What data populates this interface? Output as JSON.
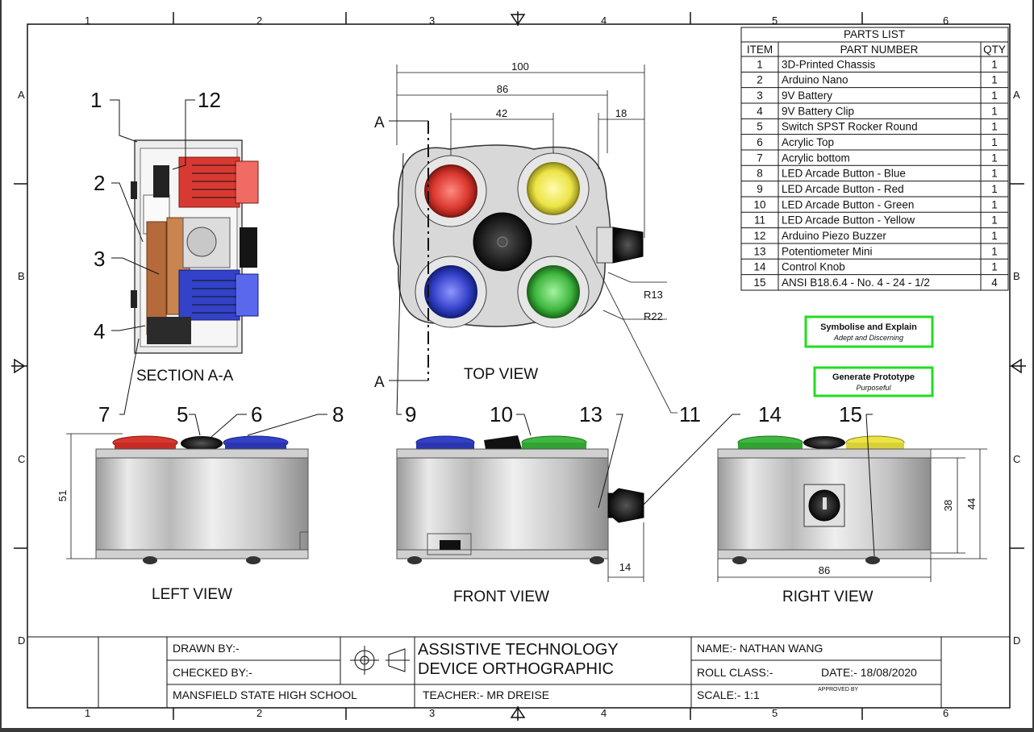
{
  "sheet": {
    "columns": [
      "1",
      "2",
      "3",
      "4",
      "5",
      "6"
    ],
    "rows": [
      "A",
      "B",
      "C",
      "D"
    ]
  },
  "parts_list": {
    "title": "PARTS LIST",
    "headers": [
      "ITEM",
      "PART NUMBER",
      "QTY"
    ],
    "rows": [
      {
        "item": "1",
        "part": "3D-Printed Chassis",
        "qty": "1"
      },
      {
        "item": "2",
        "part": "Arduino Nano",
        "qty": "1"
      },
      {
        "item": "3",
        "part": "9V Battery",
        "qty": "1"
      },
      {
        "item": "4",
        "part": "9V Battery Clip",
        "qty": "1"
      },
      {
        "item": "5",
        "part": "Switch SPST Rocker Round",
        "qty": "1"
      },
      {
        "item": "6",
        "part": "Acrylic Top",
        "qty": "1"
      },
      {
        "item": "7",
        "part": "Acrylic bottom",
        "qty": "1"
      },
      {
        "item": "8",
        "part": "LED Arcade Button - Blue",
        "qty": "1"
      },
      {
        "item": "9",
        "part": "LED Arcade Button - Red",
        "qty": "1"
      },
      {
        "item": "10",
        "part": "LED Arcade Button - Green",
        "qty": "1"
      },
      {
        "item": "11",
        "part": "LED Arcade Button - Yellow",
        "qty": "1"
      },
      {
        "item": "12",
        "part": "Arduino Piezo Buzzer",
        "qty": "1"
      },
      {
        "item": "13",
        "part": "Potentiometer Mini",
        "qty": "1"
      },
      {
        "item": "14",
        "part": "Control Knob",
        "qty": "1"
      },
      {
        "item": "15",
        "part": "ANSI B18.6.4 - No. 4 - 24 - 1/2",
        "qty": "4"
      }
    ]
  },
  "views": {
    "section": "SECTION A-A",
    "top": "TOP VIEW",
    "left": "LEFT VIEW",
    "front": "FRONT VIEW",
    "right": "RIGHT VIEW"
  },
  "section_marker": "A",
  "balloons": {
    "b1": "1",
    "b12": "12",
    "b2": "2",
    "b3": "3",
    "b4": "4",
    "b7": "7",
    "b5": "5",
    "b6": "6",
    "b8": "8",
    "b9": "9",
    "b10": "10",
    "b13": "13",
    "b11": "11",
    "b14": "14",
    "b15": "15"
  },
  "dimensions": {
    "top_width": "100",
    "top_86": "86",
    "top_42": "42",
    "top_18": "18",
    "r13": "R13",
    "r22": "R22",
    "left_height": "51",
    "front_14": "14",
    "right_38": "38",
    "right_44": "44",
    "right_86": "86"
  },
  "tags": [
    {
      "title": "Symbolise and Explain",
      "subtitle": "Adept and Discerning"
    },
    {
      "title": "Generate Prototype",
      "subtitle": "Purposeful"
    }
  ],
  "title_block": {
    "drawn_by": "DRAWN BY:-",
    "checked_by": "CHECKED BY:-",
    "school": "MANSFIELD STATE HIGH SCHOOL",
    "title_line1": "ASSISTIVE TECHNOLOGY",
    "title_line2": "DEVICE ORTHOGRAPHIC",
    "teacher": "TEACHER:-  MR DREISE",
    "name": "NAME:-  NATHAN WANG",
    "roll_class": "ROLL CLASS:-",
    "date": "DATE:- 18/08/2020",
    "approved_by": "APPROVED BY",
    "scale": "SCALE:-  1:1"
  },
  "colors": {
    "red": "#d9362e",
    "yellow": "#ece445",
    "blue": "#3340c8",
    "green": "#3fb83f",
    "black": "#141414",
    "tag_border": "#22dd22",
    "chassis": "#d6d6d6"
  }
}
